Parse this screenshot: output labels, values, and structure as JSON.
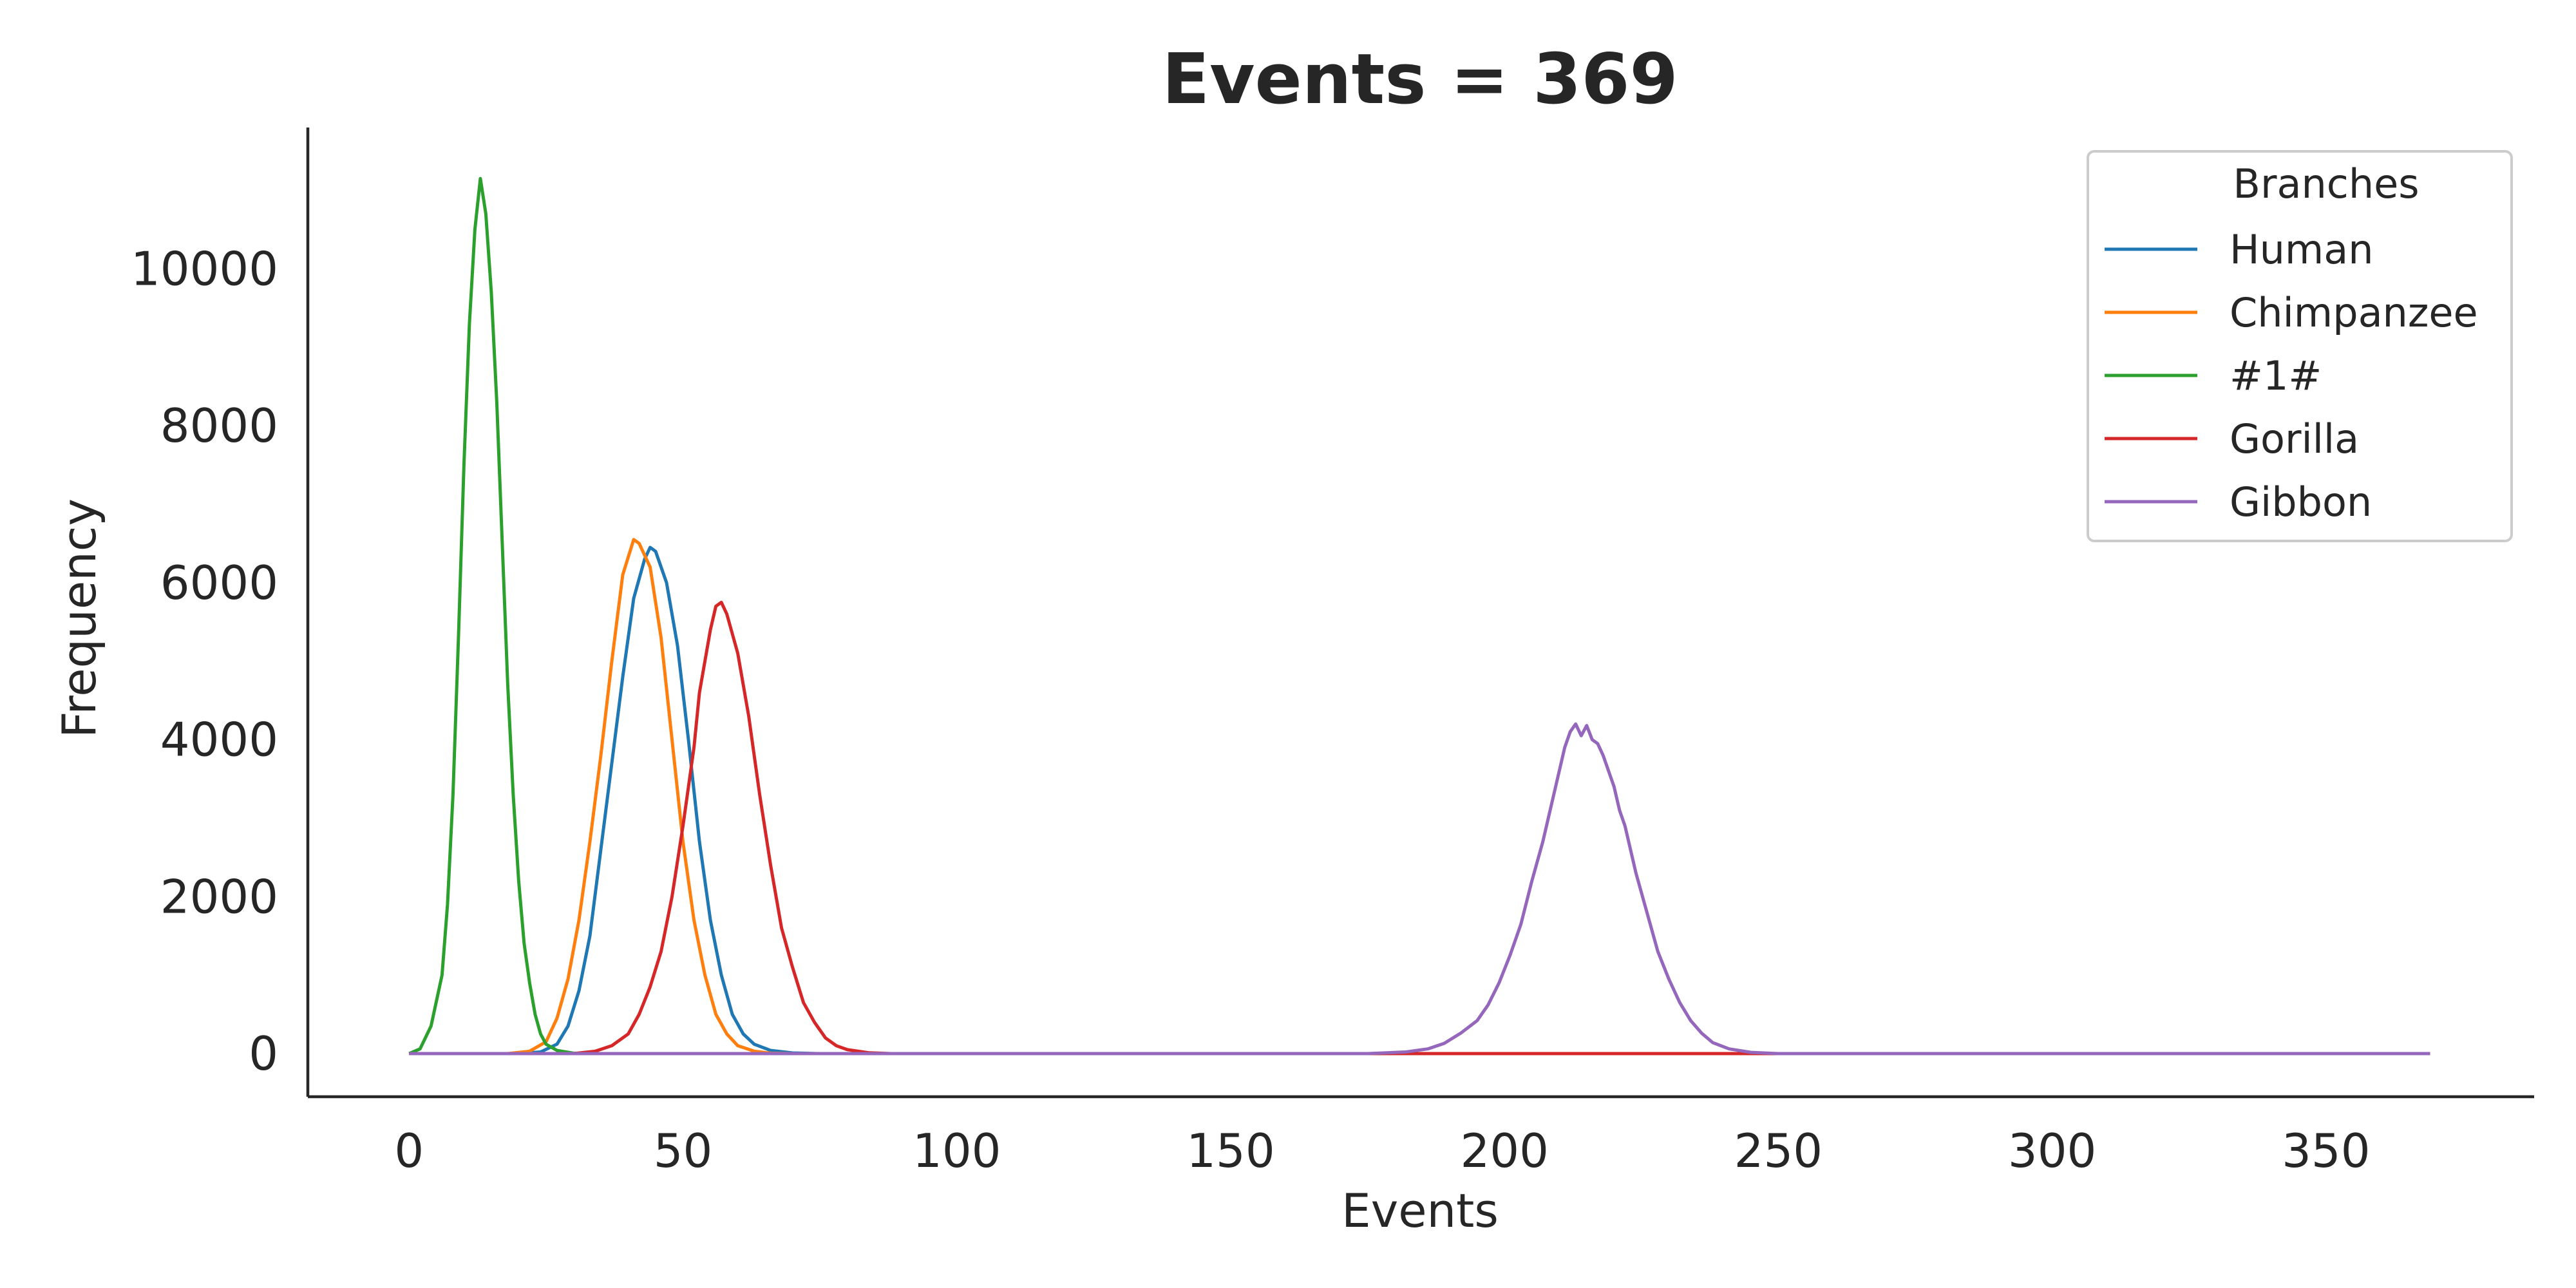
{
  "chart_data": {
    "type": "line",
    "title": "Events = 369",
    "xlabel": "Events",
    "ylabel": "Frequency",
    "xlim": [
      -18.5,
      388
    ],
    "ylim": [
      -550,
      11800
    ],
    "xticks": [
      0,
      50,
      100,
      150,
      200,
      250,
      300,
      350
    ],
    "yticks": [
      0,
      2000,
      4000,
      6000,
      8000,
      10000
    ],
    "grid": false,
    "legend": {
      "title": "Branches",
      "placement": "top-right"
    },
    "x_range": [
      0,
      369
    ],
    "series": [
      {
        "name": "Human",
        "color": "#1f77b4",
        "points": [
          [
            0,
            0
          ],
          [
            20,
            0
          ],
          [
            24,
            20
          ],
          [
            27,
            120
          ],
          [
            29,
            350
          ],
          [
            31,
            800
          ],
          [
            33,
            1500
          ],
          [
            35,
            2600
          ],
          [
            37,
            3700
          ],
          [
            39,
            4800
          ],
          [
            41,
            5800
          ],
          [
            43,
            6300
          ],
          [
            44,
            6450
          ],
          [
            45,
            6400
          ],
          [
            47,
            6000
          ],
          [
            49,
            5200
          ],
          [
            51,
            4000
          ],
          [
            53,
            2700
          ],
          [
            55,
            1700
          ],
          [
            57,
            1000
          ],
          [
            59,
            500
          ],
          [
            61,
            250
          ],
          [
            63,
            120
          ],
          [
            66,
            40
          ],
          [
            70,
            8
          ],
          [
            75,
            0
          ],
          [
            369,
            0
          ]
        ]
      },
      {
        "name": "Chimpanzee",
        "color": "#ff7f0e",
        "points": [
          [
            0,
            0
          ],
          [
            18,
            0
          ],
          [
            22,
            30
          ],
          [
            25,
            150
          ],
          [
            27,
            450
          ],
          [
            29,
            950
          ],
          [
            31,
            1700
          ],
          [
            33,
            2700
          ],
          [
            35,
            3800
          ],
          [
            37,
            5000
          ],
          [
            39,
            6100
          ],
          [
            41,
            6550
          ],
          [
            42,
            6500
          ],
          [
            44,
            6200
          ],
          [
            46,
            5300
          ],
          [
            48,
            4000
          ],
          [
            50,
            2700
          ],
          [
            52,
            1700
          ],
          [
            54,
            1000
          ],
          [
            56,
            500
          ],
          [
            58,
            250
          ],
          [
            60,
            100
          ],
          [
            63,
            30
          ],
          [
            66,
            5
          ],
          [
            70,
            0
          ],
          [
            369,
            0
          ]
        ]
      },
      {
        "name": "#1#",
        "color": "#2ca02c",
        "points": [
          [
            0,
            0
          ],
          [
            2,
            60
          ],
          [
            4,
            350
          ],
          [
            6,
            1000
          ],
          [
            7,
            1900
          ],
          [
            8,
            3300
          ],
          [
            9,
            5300
          ],
          [
            10,
            7500
          ],
          [
            11,
            9300
          ],
          [
            12,
            10500
          ],
          [
            13,
            11150
          ],
          [
            14,
            10700
          ],
          [
            15,
            9700
          ],
          [
            16,
            8300
          ],
          [
            17,
            6500
          ],
          [
            18,
            4700
          ],
          [
            19,
            3300
          ],
          [
            20,
            2200
          ],
          [
            21,
            1400
          ],
          [
            22,
            900
          ],
          [
            23,
            500
          ],
          [
            24,
            250
          ],
          [
            25,
            120
          ],
          [
            27,
            40
          ],
          [
            30,
            5
          ],
          [
            33,
            0
          ],
          [
            369,
            0
          ]
        ]
      },
      {
        "name": "Gorilla",
        "color": "#d62728",
        "points": [
          [
            0,
            0
          ],
          [
            30,
            0
          ],
          [
            34,
            30
          ],
          [
            37,
            100
          ],
          [
            40,
            250
          ],
          [
            42,
            500
          ],
          [
            44,
            850
          ],
          [
            46,
            1300
          ],
          [
            48,
            2000
          ],
          [
            50,
            2900
          ],
          [
            52,
            3900
          ],
          [
            53,
            4600
          ],
          [
            54,
            5000
          ],
          [
            55,
            5400
          ],
          [
            56,
            5700
          ],
          [
            57,
            5750
          ],
          [
            58,
            5600
          ],
          [
            60,
            5100
          ],
          [
            62,
            4300
          ],
          [
            64,
            3300
          ],
          [
            66,
            2400
          ],
          [
            68,
            1600
          ],
          [
            70,
            1100
          ],
          [
            72,
            650
          ],
          [
            74,
            400
          ],
          [
            76,
            200
          ],
          [
            78,
            100
          ],
          [
            80,
            50
          ],
          [
            84,
            10
          ],
          [
            88,
            0
          ],
          [
            369,
            0
          ]
        ]
      },
      {
        "name": "Gibbon",
        "color": "#9467bd",
        "points": [
          [
            0,
            0
          ],
          [
            175,
            0
          ],
          [
            182,
            20
          ],
          [
            186,
            60
          ],
          [
            189,
            130
          ],
          [
            192,
            260
          ],
          [
            195,
            420
          ],
          [
            197,
            620
          ],
          [
            199,
            900
          ],
          [
            201,
            1250
          ],
          [
            203,
            1650
          ],
          [
            205,
            2200
          ],
          [
            207,
            2700
          ],
          [
            209,
            3300
          ],
          [
            210,
            3600
          ],
          [
            211,
            3900
          ],
          [
            212,
            4100
          ],
          [
            213,
            4200
          ],
          [
            214,
            4050
          ],
          [
            215,
            4180
          ],
          [
            216,
            4000
          ],
          [
            217,
            3950
          ],
          [
            218,
            3800
          ],
          [
            220,
            3400
          ],
          [
            221,
            3100
          ],
          [
            222,
            2900
          ],
          [
            224,
            2300
          ],
          [
            226,
            1800
          ],
          [
            228,
            1300
          ],
          [
            230,
            950
          ],
          [
            232,
            650
          ],
          [
            234,
            420
          ],
          [
            236,
            260
          ],
          [
            238,
            140
          ],
          [
            241,
            60
          ],
          [
            245,
            15
          ],
          [
            250,
            0
          ],
          [
            369,
            0
          ]
        ]
      }
    ]
  }
}
